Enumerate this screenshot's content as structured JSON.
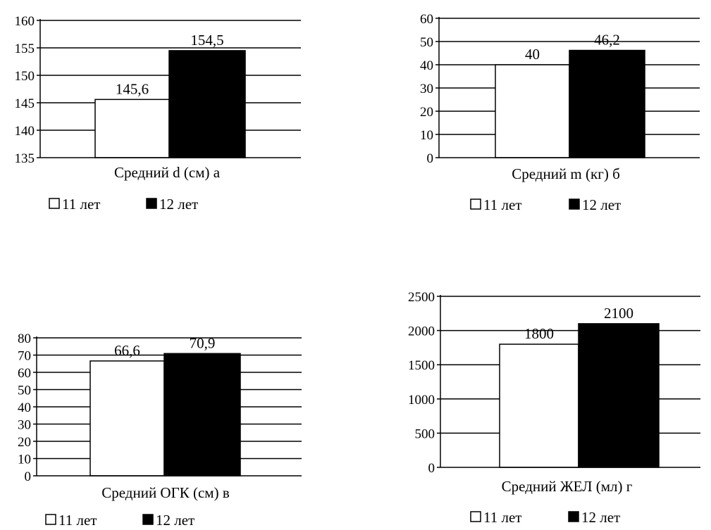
{
  "legend": {
    "items": [
      {
        "label": "11 лет",
        "color": "#ffffff"
      },
      {
        "label": "12 лет",
        "color": "#000000"
      }
    ]
  },
  "chart_data": [
    {
      "type": "bar",
      "categories": [
        "11 лет",
        "12 лет"
      ],
      "values": [
        145.6,
        154.5
      ],
      "value_labels": [
        "145,6",
        "154,5"
      ],
      "xlabel": "Средний d (см) а",
      "ylabel": "",
      "ylim": [
        135,
        160
      ],
      "yticks": [
        135,
        140,
        145,
        150,
        155,
        160
      ],
      "ytick_labels": [
        "135",
        "140",
        "145",
        "150",
        "155",
        "160"
      ],
      "grid": true,
      "legend_position": "bottom"
    },
    {
      "type": "bar",
      "categories": [
        "11 лет",
        "12 лет"
      ],
      "values": [
        40,
        46.2
      ],
      "value_labels": [
        "40",
        "46,2"
      ],
      "xlabel": "Средний m (кг) б",
      "ylabel": "",
      "ylim": [
        0,
        60
      ],
      "yticks": [
        0,
        10,
        20,
        30,
        40,
        50,
        60
      ],
      "ytick_labels": [
        "0",
        "10",
        "20",
        "30",
        "40",
        "50",
        "60"
      ],
      "grid": true,
      "legend_position": "bottom"
    },
    {
      "type": "bar",
      "categories": [
        "11 лет",
        "12 лет"
      ],
      "values": [
        66.6,
        70.9
      ],
      "value_labels": [
        "66,6",
        "70,9"
      ],
      "xlabel": "Средний ОГК (см) в",
      "ylabel": "",
      "ylim": [
        0,
        80
      ],
      "yticks": [
        0,
        10,
        20,
        30,
        40,
        50,
        60,
        70,
        80
      ],
      "ytick_labels": [
        "0",
        "10",
        "20",
        "30",
        "40",
        "50",
        "60",
        "70",
        "80"
      ],
      "grid": true,
      "legend_position": "bottom"
    },
    {
      "type": "bar",
      "categories": [
        "11 лет",
        "12 лет"
      ],
      "values": [
        1800,
        2100
      ],
      "value_labels": [
        "1800",
        "2100"
      ],
      "xlabel": "Средний ЖЕЛ (мл) г",
      "ylabel": "",
      "ylim": [
        0,
        2500
      ],
      "yticks": [
        0,
        500,
        1000,
        1500,
        2000,
        2500
      ],
      "ytick_labels": [
        "0",
        "500",
        "1000",
        "1500",
        "2000",
        "2500"
      ],
      "grid": true,
      "legend_position": "bottom"
    }
  ]
}
